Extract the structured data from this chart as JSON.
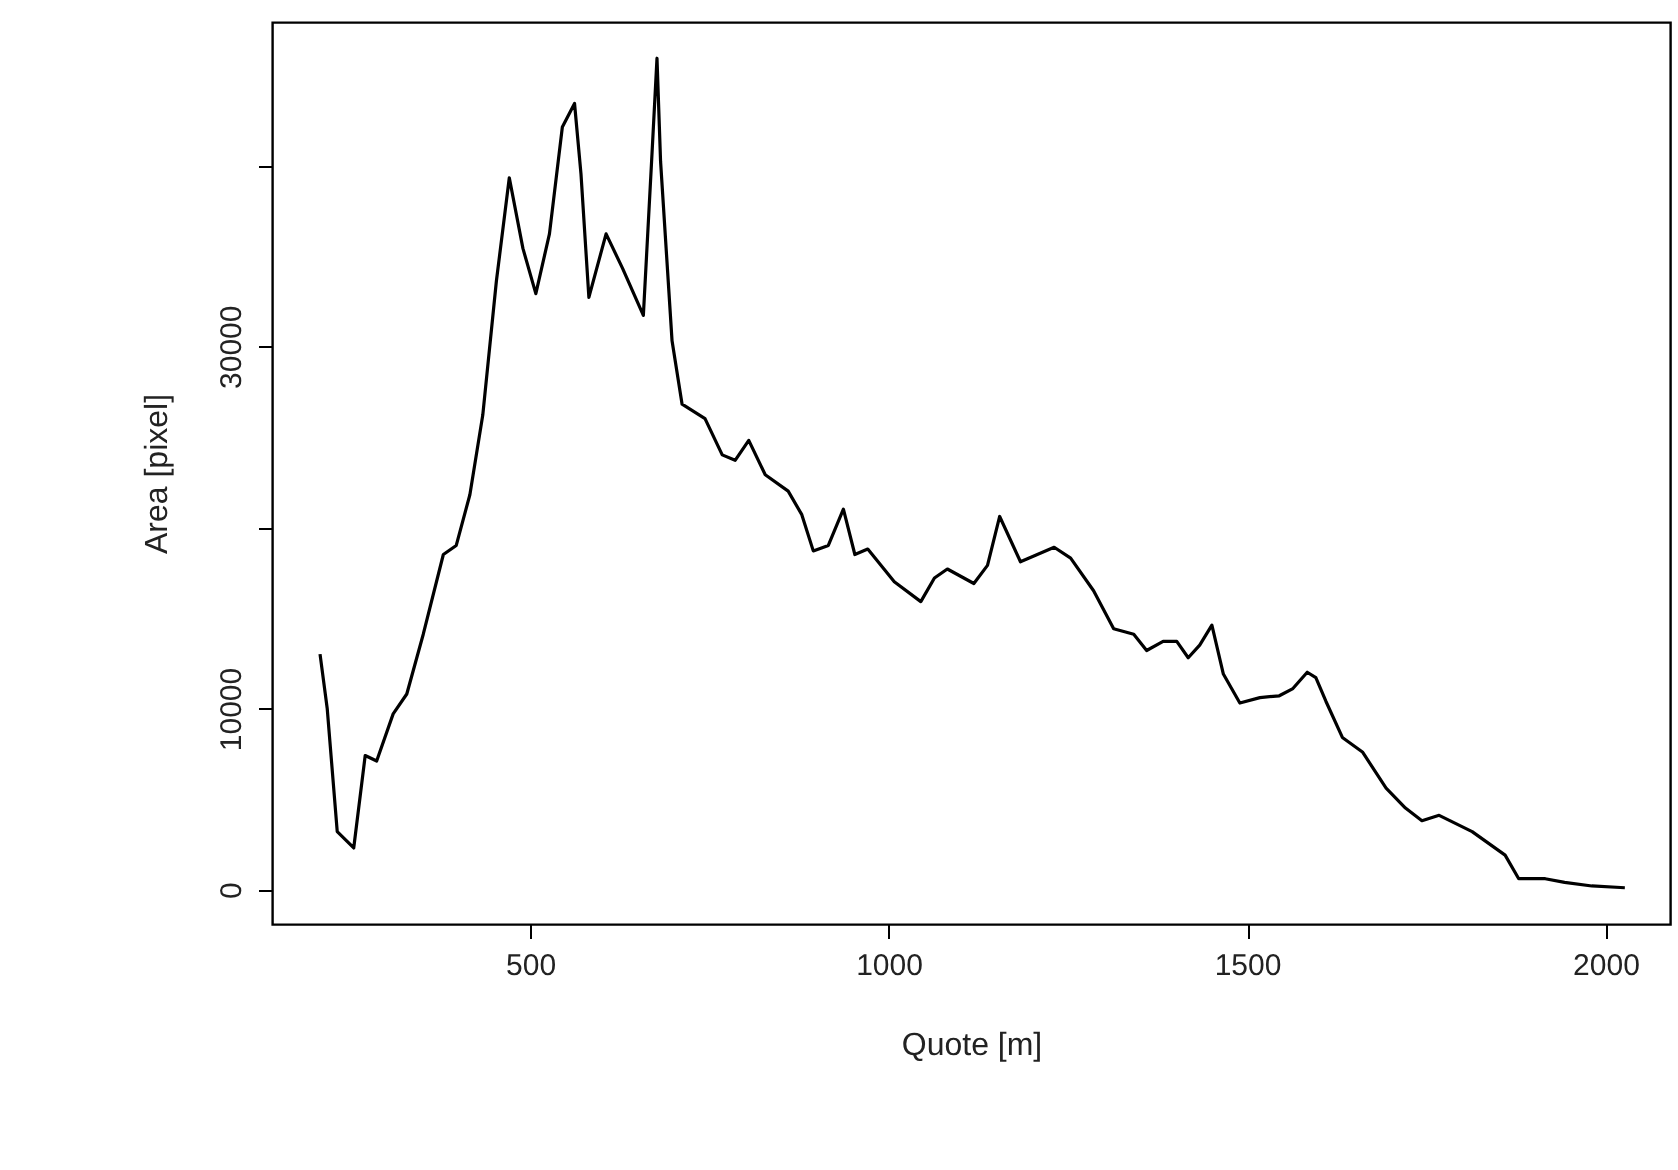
{
  "chart_data": {
    "type": "line",
    "xlabel": "Quote [m]",
    "ylabel": "Area [pixel]",
    "x": [
      207,
      217,
      231,
      254,
      270,
      286,
      309,
      328,
      351,
      379,
      397,
      416,
      434,
      453,
      471,
      490,
      508,
      527,
      545,
      562,
      571,
      582,
      606,
      629,
      658,
      670,
      677,
      682,
      698,
      712,
      744,
      768,
      786,
      805,
      828,
      860,
      879,
      895,
      916,
      937,
      953,
      971,
      1008,
      1045,
      1064,
      1082,
      1119,
      1138,
      1155,
      1184,
      1231,
      1254,
      1286,
      1314,
      1342,
      1360,
      1383,
      1402,
      1418,
      1434,
      1451,
      1467,
      1490,
      1518,
      1545,
      1564,
      1584,
      1596,
      1610,
      1633,
      1661,
      1694,
      1721,
      1744,
      1768,
      1814,
      1860,
      1879,
      1916,
      1943,
      1981,
      2027
    ],
    "series": [
      {
        "color": "#000000",
        "values": [
          13000,
          10000,
          3200,
          2300,
          7400,
          7100,
          9700,
          10800,
          14100,
          18500,
          19000,
          21800,
          26200,
          33600,
          39300,
          35400,
          32900,
          36200,
          42100,
          43400,
          39500,
          32700,
          36200,
          34300,
          31700,
          40600,
          45900,
          40200,
          30300,
          26800,
          26000,
          24000,
          23700,
          24800,
          22900,
          22000,
          20700,
          18700,
          19000,
          21000,
          18500,
          18800,
          17000,
          15900,
          17200,
          17700,
          16900,
          17900,
          20600,
          18100,
          18900,
          18300,
          16500,
          14400,
          14100,
          13200,
          13700,
          13700,
          12800,
          13500,
          14600,
          11900,
          10300,
          10600,
          10700,
          11100,
          12000,
          11700,
          10400,
          8400,
          7600,
          5600,
          4500,
          3800,
          4100,
          3200,
          1900,
          600,
          600,
          400,
          200,
          100
        ]
      }
    ],
    "xlim": [
      140,
      2090
    ],
    "ylim": [
      -1900,
      47900
    ],
    "xticks": [
      500,
      1000,
      1500,
      2000
    ],
    "yticks": [
      0,
      10000,
      {
        "value": 20000,
        "label": null
      },
      30000,
      {
        "value": 40000,
        "label": null
      }
    ],
    "line_style": "solid"
  }
}
